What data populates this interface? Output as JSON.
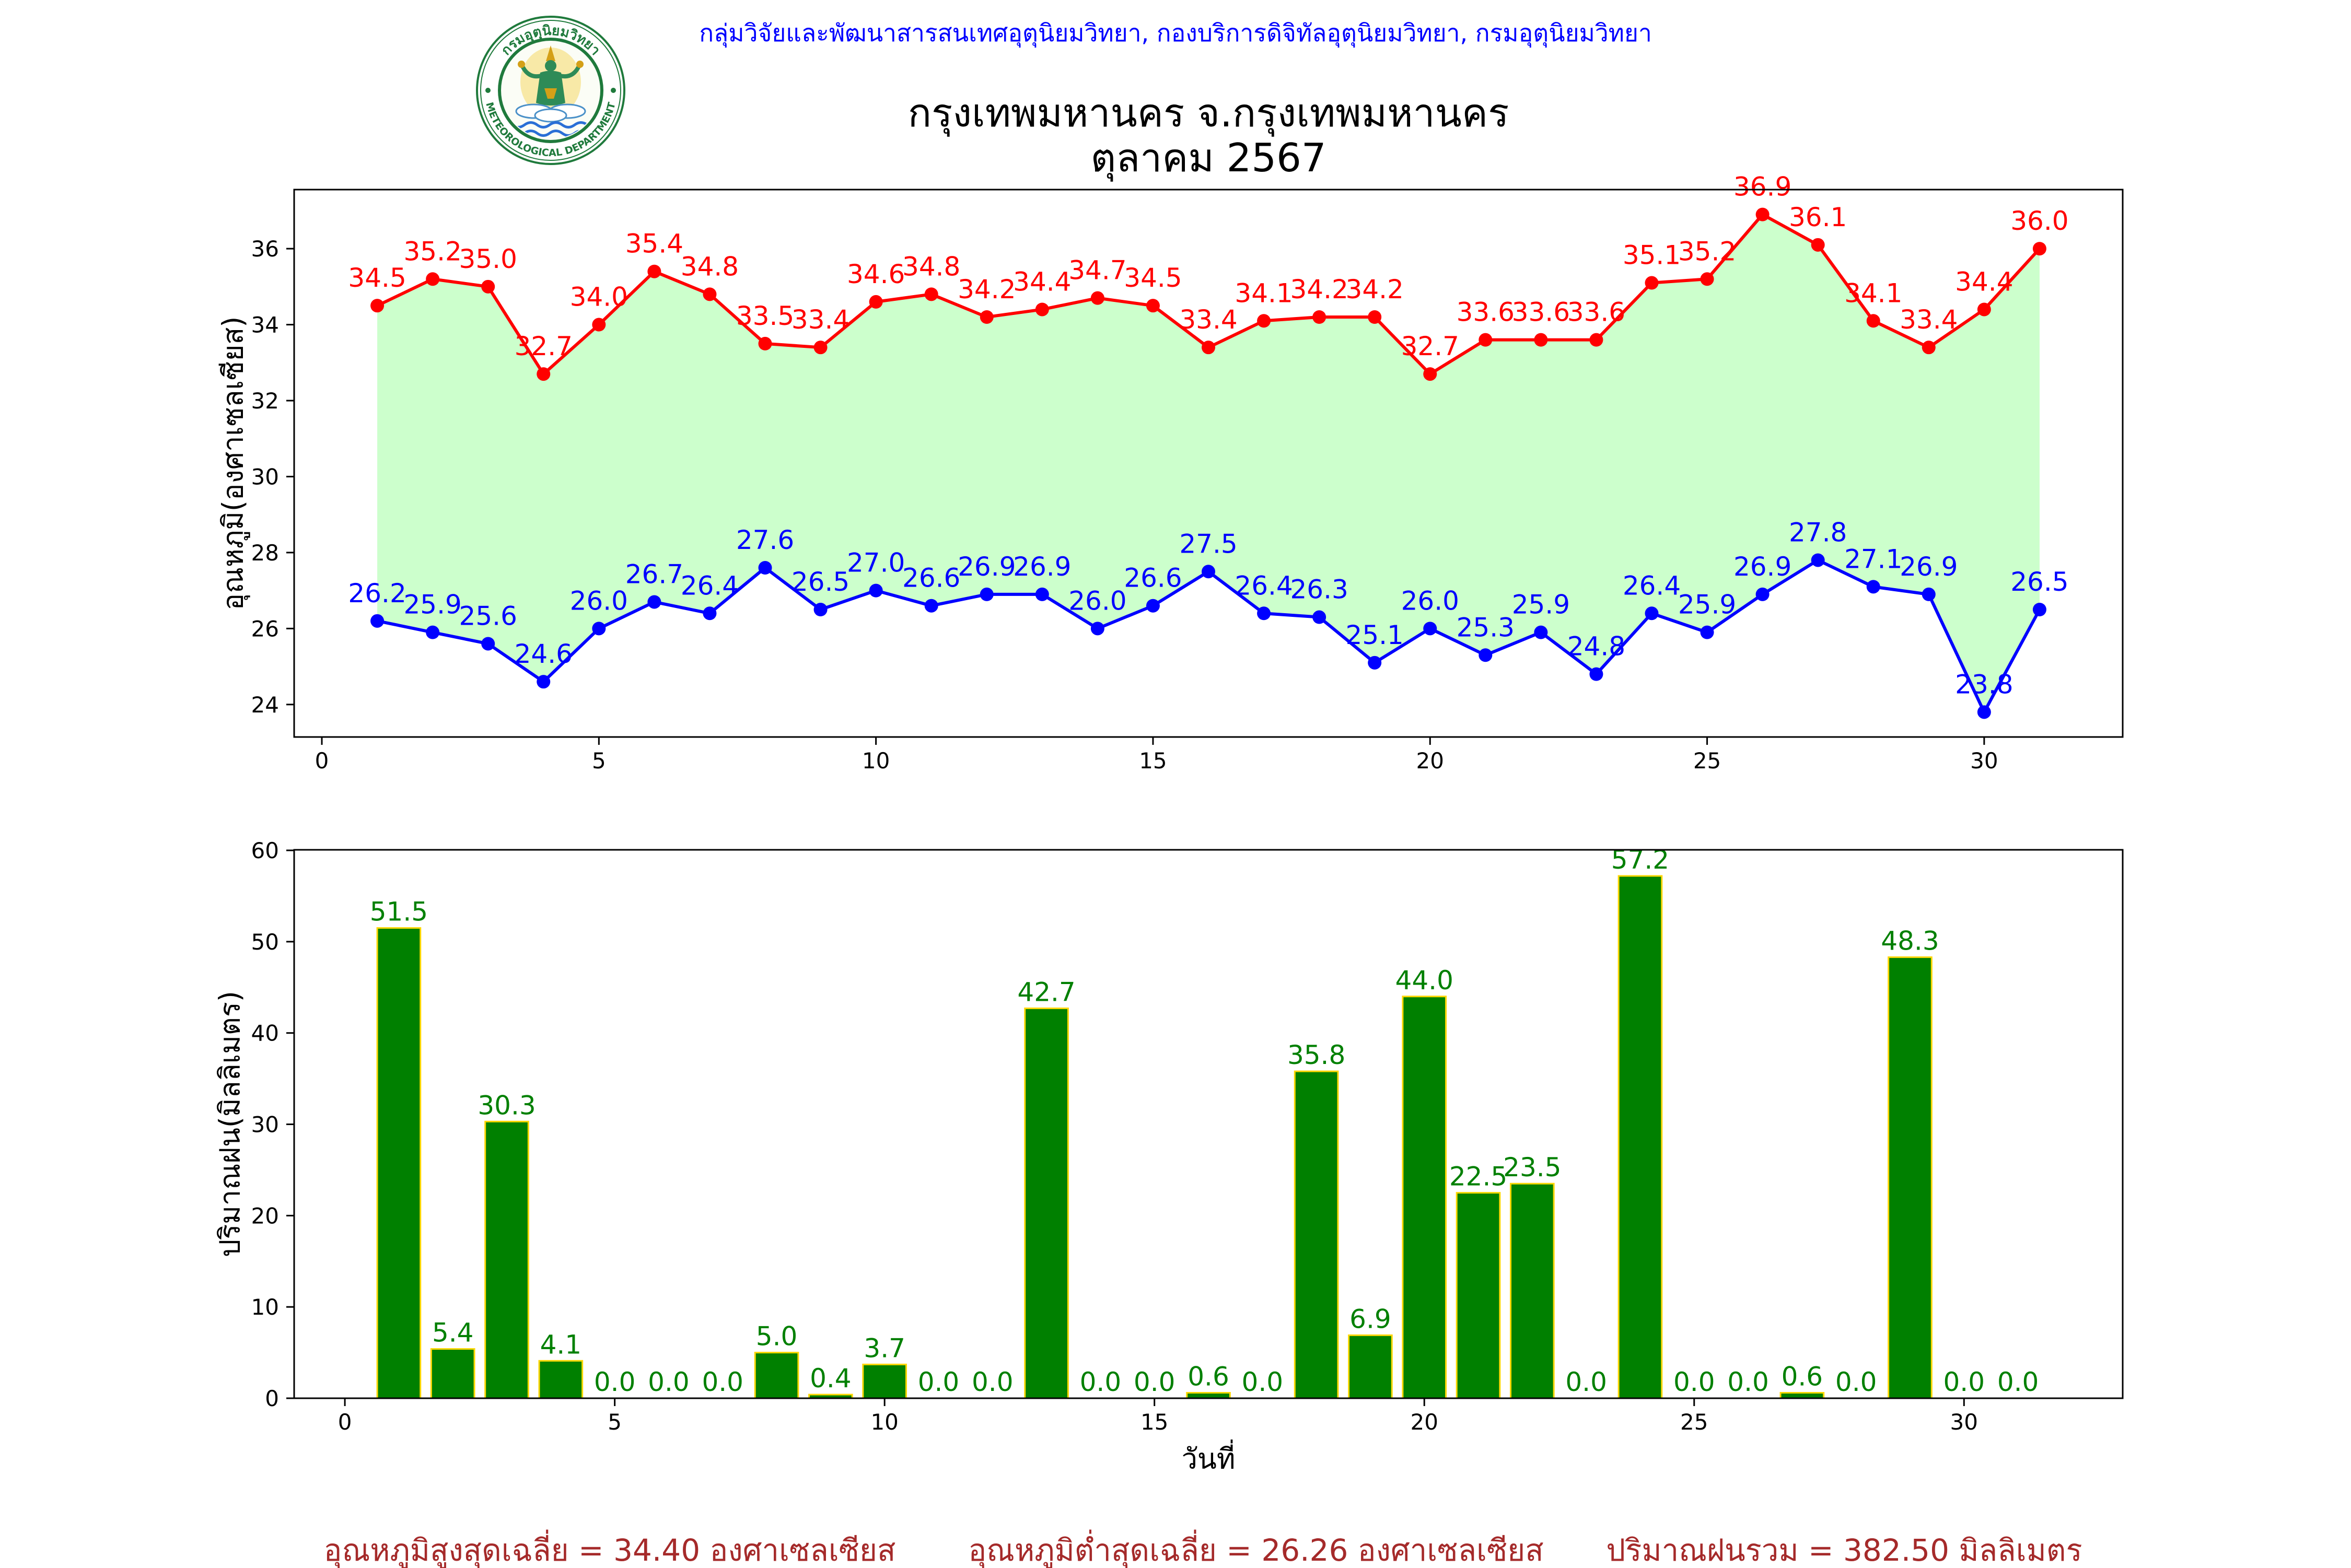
{
  "header": {
    "org_line": "กลุ่มวิจัยและพัฒนาสารสนเทศอุตุนิยมวิทยา, กองบริการดิจิทัลอุตุนิยมวิทยา, กรมอุตุนิยมวิทยา"
  },
  "logo": {
    "top_text": "กรมอุตุนิยมวิทยา",
    "bottom_text": "METEOROLOGICAL DEPARTMENT"
  },
  "chart_data": [
    {
      "type": "line",
      "title": "กรุงเทพมหานคร จ.กรุงเทพมหานคร",
      "subtitle": "ตุลาคม 2567",
      "ylabel": "อุณหภูมิ(องศาเซลเซียส)",
      "x": [
        1,
        2,
        3,
        4,
        5,
        6,
        7,
        8,
        9,
        10,
        11,
        12,
        13,
        14,
        15,
        16,
        17,
        18,
        19,
        20,
        21,
        22,
        23,
        24,
        25,
        26,
        27,
        28,
        29,
        30,
        31
      ],
      "series": [
        {
          "values": [
            34.5,
            35.2,
            35.0,
            32.7,
            34.0,
            35.4,
            34.8,
            33.5,
            33.4,
            34.6,
            34.8,
            34.2,
            34.4,
            34.7,
            34.5,
            33.4,
            34.1,
            34.2,
            34.2,
            32.7,
            33.6,
            33.6,
            33.6,
            35.1,
            35.2,
            36.9,
            36.1,
            34.1,
            33.4,
            34.4,
            36.0
          ],
          "color": "#ff0000",
          "marker": "circle"
        },
        {
          "values": [
            26.2,
            25.9,
            25.6,
            24.6,
            26.0,
            26.7,
            26.4,
            27.6,
            26.5,
            27.0,
            26.6,
            26.9,
            26.9,
            26.0,
            26.6,
            27.5,
            26.4,
            26.3,
            25.1,
            26.0,
            25.3,
            25.9,
            24.8,
            26.4,
            25.9,
            26.9,
            27.8,
            27.1,
            26.9,
            23.8,
            26.5
          ],
          "color": "#0000ff",
          "marker": "circle"
        }
      ],
      "fill_between": {
        "series": [
          0,
          1
        ],
        "color": "#ccffcc"
      },
      "data_labels": true,
      "xlim": [
        -0.5,
        32.5
      ],
      "ylim": [
        23.145,
        37.555
      ],
      "xticks": [
        0,
        5,
        10,
        15,
        20,
        25,
        30
      ],
      "yticks": [
        24,
        26,
        28,
        30,
        32,
        34,
        36
      ],
      "grid": false,
      "legend": false
    },
    {
      "type": "bar",
      "xlabel": "วันที่",
      "ylabel": "ปริมาณฝน(มิลลิเมตร)",
      "x": [
        1,
        2,
        3,
        4,
        5,
        6,
        7,
        8,
        9,
        10,
        11,
        12,
        13,
        14,
        15,
        16,
        17,
        18,
        19,
        20,
        21,
        22,
        23,
        24,
        25,
        26,
        27,
        28,
        29,
        30,
        31
      ],
      "values": [
        51.5,
        5.4,
        30.3,
        4.1,
        0.0,
        0.0,
        0.0,
        5.0,
        0.4,
        3.7,
        0.0,
        0.0,
        42.7,
        0.0,
        0.0,
        0.6,
        0.0,
        35.8,
        6.9,
        44.0,
        22.5,
        23.5,
        0.0,
        57.2,
        0.0,
        0.0,
        0.6,
        0.0,
        48.3,
        0.0,
        0.0
      ],
      "bar_color": "#008000",
      "edge_color": "#ffd700",
      "label_color": "#008000",
      "data_labels": true,
      "xlim": [
        -0.94,
        32.94
      ],
      "ylim": [
        0,
        60.06
      ],
      "xticks": [
        0,
        5,
        10,
        15,
        20,
        25,
        30
      ],
      "yticks": [
        0,
        10,
        20,
        30,
        40,
        50,
        60
      ],
      "grid": false,
      "legend": false
    }
  ],
  "footer": {
    "avg_max": "อุณหภูมิสูงสุดเฉลี่ย = 34.40 องศาเซลเซียส",
    "avg_min": "อุณหภูมิต่ำสุดเฉลี่ย = 26.26 องศาเซลเซียส",
    "total_rain": "ปริมาณฝนรวม = 382.50 มิลลิเมตร"
  },
  "colors": {
    "header_text": "#0000ff",
    "footer_text": "#a52a2a",
    "logo_green": "#1f7a3c"
  }
}
